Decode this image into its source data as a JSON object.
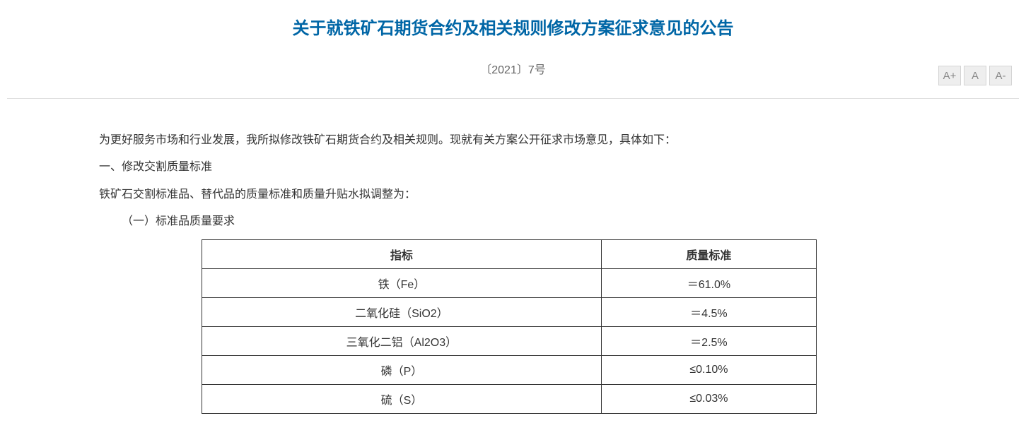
{
  "header": {
    "title": "关于就铁矿石期货合约及相关规则修改方案征求意见的公告",
    "doc_number": "〔2021〕7号"
  },
  "font_controls": {
    "increase": "A+",
    "normal": "A",
    "decrease": "A-"
  },
  "paragraphs": {
    "p1": "为更好服务市场和行业发展，我所拟修改铁矿石期货合约及相关规则。现就有关方案公开征求市场意见，具体如下：",
    "p2": "一、修改交割质量标准",
    "p3": "铁矿石交割标准品、替代品的质量标准和质量升贴水拟调整为：",
    "p4": "（一）标准品质量要求"
  },
  "table": {
    "headers": {
      "col1": "指标",
      "col2": "质量标准"
    },
    "rows": [
      {
        "indicator": "铁（Fe）",
        "standard": "＝61.0%"
      },
      {
        "indicator": "二氧化硅（SiO2）",
        "standard": "＝4.5%"
      },
      {
        "indicator": "三氧化二铝（Al2O3）",
        "standard": "＝2.5%"
      },
      {
        "indicator": "磷（P）",
        "standard": "≤0.10%"
      },
      {
        "indicator": "硫（S）",
        "standard": "≤0.03%"
      }
    ]
  },
  "styling": {
    "title_color": "#0066a6",
    "text_color": "#333333",
    "border_color": "#333333",
    "bg_color": "#ffffff",
    "divider_color": "#e0e0e0",
    "btn_bg": "#eeeeee",
    "btn_border": "#d5d5d5",
    "btn_text": "#888888",
    "title_fontsize": 24,
    "body_fontsize": 16,
    "line_height": 2.4
  }
}
